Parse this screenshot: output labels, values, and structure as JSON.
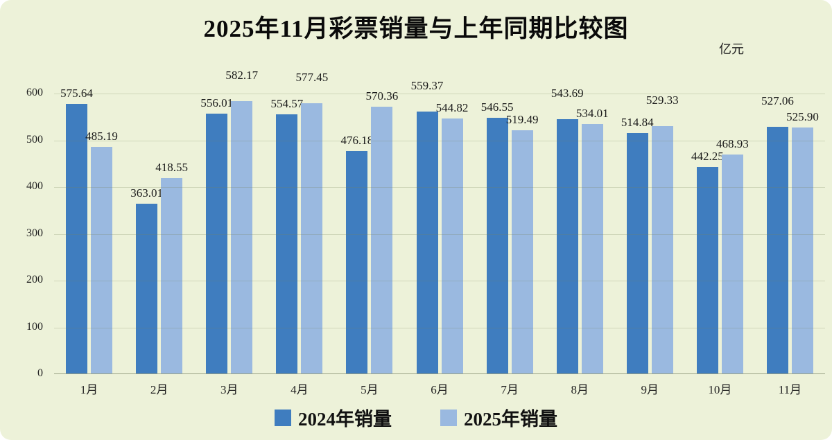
{
  "title": "2025年11月彩票销量与上年同期比较图",
  "unit_label": "亿元",
  "legend": [
    {
      "label": "2024年销量",
      "color": "#3f7dbf"
    },
    {
      "label": "2025年销量",
      "color": "#9ab9e0"
    }
  ],
  "chart_data": {
    "type": "bar",
    "title": "2025年11月彩票销量与上年同期比较图",
    "ylabel": "亿元",
    "categories": [
      "1月",
      "2月",
      "3月",
      "4月",
      "5月",
      "6月",
      "7月",
      "8月",
      "9月",
      "10月",
      "11月"
    ],
    "series": [
      {
        "name": "2024年销量",
        "color": "#3f7dbf",
        "values": [
          575.64,
          363.01,
          556.01,
          554.57,
          476.18,
          559.37,
          546.55,
          543.69,
          514.84,
          442.25,
          527.06
        ]
      },
      {
        "name": "2025年销量",
        "color": "#9ab9e0",
        "values": [
          485.19,
          418.55,
          582.17,
          577.45,
          570.36,
          544.82,
          519.49,
          534.01,
          529.33,
          468.93,
          525.9
        ]
      }
    ],
    "ylim": [
      0,
      600
    ],
    "yticks": [
      0,
      100,
      200,
      300,
      400,
      500,
      600
    ],
    "grid": true,
    "legend_position": "bottom",
    "data_labels": true
  },
  "colors": {
    "background": "#edf2d9",
    "grid": "#c7cdab",
    "axis_line": "#97a083",
    "text": "#1a1a1a"
  }
}
